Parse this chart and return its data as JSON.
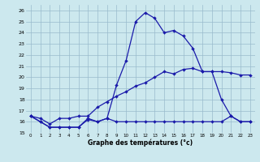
{
  "title": "Graphe des températures (°c)",
  "bg_color": "#cce8ee",
  "grid_color": "#99bbcc",
  "line_color": "#1a1aaa",
  "xlim": [
    -0.5,
    23.5
  ],
  "ylim": [
    15,
    26.5
  ],
  "xticks": [
    0,
    1,
    2,
    3,
    4,
    5,
    6,
    7,
    8,
    9,
    10,
    11,
    12,
    13,
    14,
    15,
    16,
    17,
    18,
    19,
    20,
    21,
    22,
    23
  ],
  "yticks": [
    15,
    16,
    17,
    18,
    19,
    20,
    21,
    22,
    23,
    24,
    25,
    26
  ],
  "curve1_x": [
    0,
    1,
    2,
    3,
    4,
    5,
    6,
    7,
    8,
    9,
    10,
    11,
    12,
    13,
    14,
    15,
    16,
    17,
    18,
    19,
    20,
    21,
    22,
    23
  ],
  "curve1_y": [
    16.5,
    16.0,
    15.5,
    15.5,
    15.5,
    15.5,
    16.3,
    16.0,
    16.3,
    19.3,
    21.5,
    25.0,
    25.8,
    25.3,
    24.0,
    24.2,
    23.7,
    22.6,
    20.5,
    20.5,
    18.0,
    16.5,
    16.0,
    16.0
  ],
  "curve2_x": [
    0,
    1,
    2,
    3,
    4,
    5,
    6,
    7,
    8,
    9,
    10,
    11,
    12,
    13,
    14,
    15,
    16,
    17,
    18,
    19,
    20,
    21,
    22,
    23
  ],
  "curve2_y": [
    16.5,
    16.0,
    15.5,
    15.5,
    15.5,
    15.5,
    16.2,
    16.0,
    16.3,
    16.0,
    16.0,
    16.0,
    16.0,
    16.0,
    16.0,
    16.0,
    16.0,
    16.0,
    16.0,
    16.0,
    16.0,
    16.5,
    16.0,
    16.0
  ],
  "curve3_x": [
    0,
    1,
    2,
    3,
    4,
    5,
    6,
    7,
    8,
    9,
    10,
    11,
    12,
    13,
    14,
    15,
    16,
    17,
    18,
    19,
    20,
    21,
    22,
    23
  ],
  "curve3_y": [
    16.5,
    16.3,
    15.8,
    16.3,
    16.3,
    16.5,
    16.5,
    17.3,
    17.8,
    18.3,
    18.7,
    19.2,
    19.5,
    20.0,
    20.5,
    20.3,
    20.7,
    20.8,
    20.5,
    20.5,
    20.5,
    20.4,
    20.2,
    20.2
  ]
}
